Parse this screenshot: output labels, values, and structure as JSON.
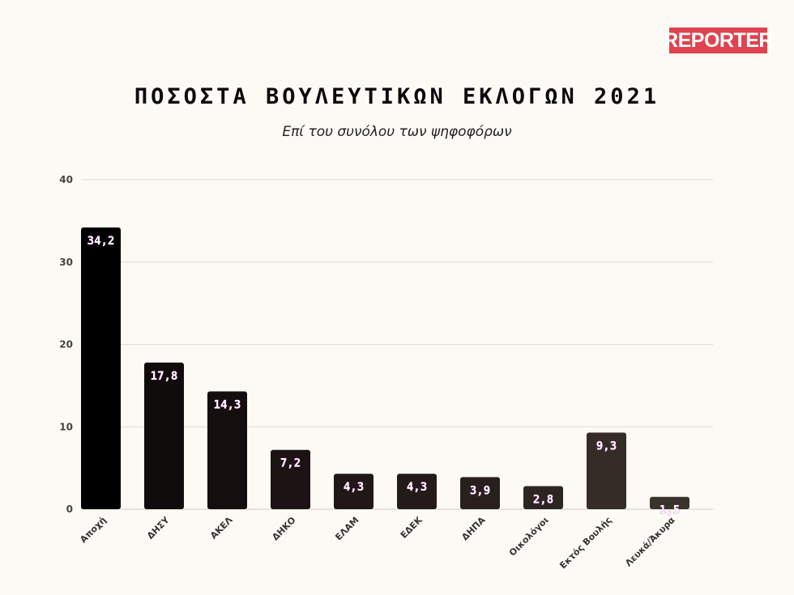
{
  "brand": {
    "logo_text": "REPORTER",
    "logo_color": "#e0434f"
  },
  "chart_data": {
    "type": "bar",
    "title": "ΠΟΣΟΣΤΑ ΒΟΥΛΕΥΤΙΚΩΝ ΕΚΛΟΓΩΝ 2021",
    "subtitle": "Επί του συνόλου των ψηφοφόρων",
    "categories": [
      "Αποχή",
      "ΔΗΣΥ",
      "ΑΚΕΛ",
      "ΔΗΚΟ",
      "ΕΛΑΜ",
      "ΕΔΕΚ",
      "ΔΗΠΑ",
      "Οικολόγοι",
      "Εκτός Βουλής",
      "Λευκά/Άκυρα"
    ],
    "values": [
      34.2,
      17.8,
      14.3,
      7.2,
      4.3,
      4.3,
      3.9,
      2.8,
      9.3,
      1.5
    ],
    "value_labels": [
      "34,2",
      "17,8",
      "14,3",
      "7,2",
      "4,3",
      "4,3",
      "3,9",
      "2,8",
      "9,3",
      "1,5"
    ],
    "bar_colors": [
      "#000000",
      "#110c0c",
      "#150e0f",
      "#1b1314",
      "#201817",
      "#221b19",
      "#28201d",
      "#2d2521",
      "#342c26",
      "#3a332c"
    ],
    "xlabel": "",
    "ylabel": "",
    "ylim": [
      0,
      40
    ],
    "yticks": [
      0,
      10,
      20,
      30,
      40
    ],
    "grid": true
  }
}
